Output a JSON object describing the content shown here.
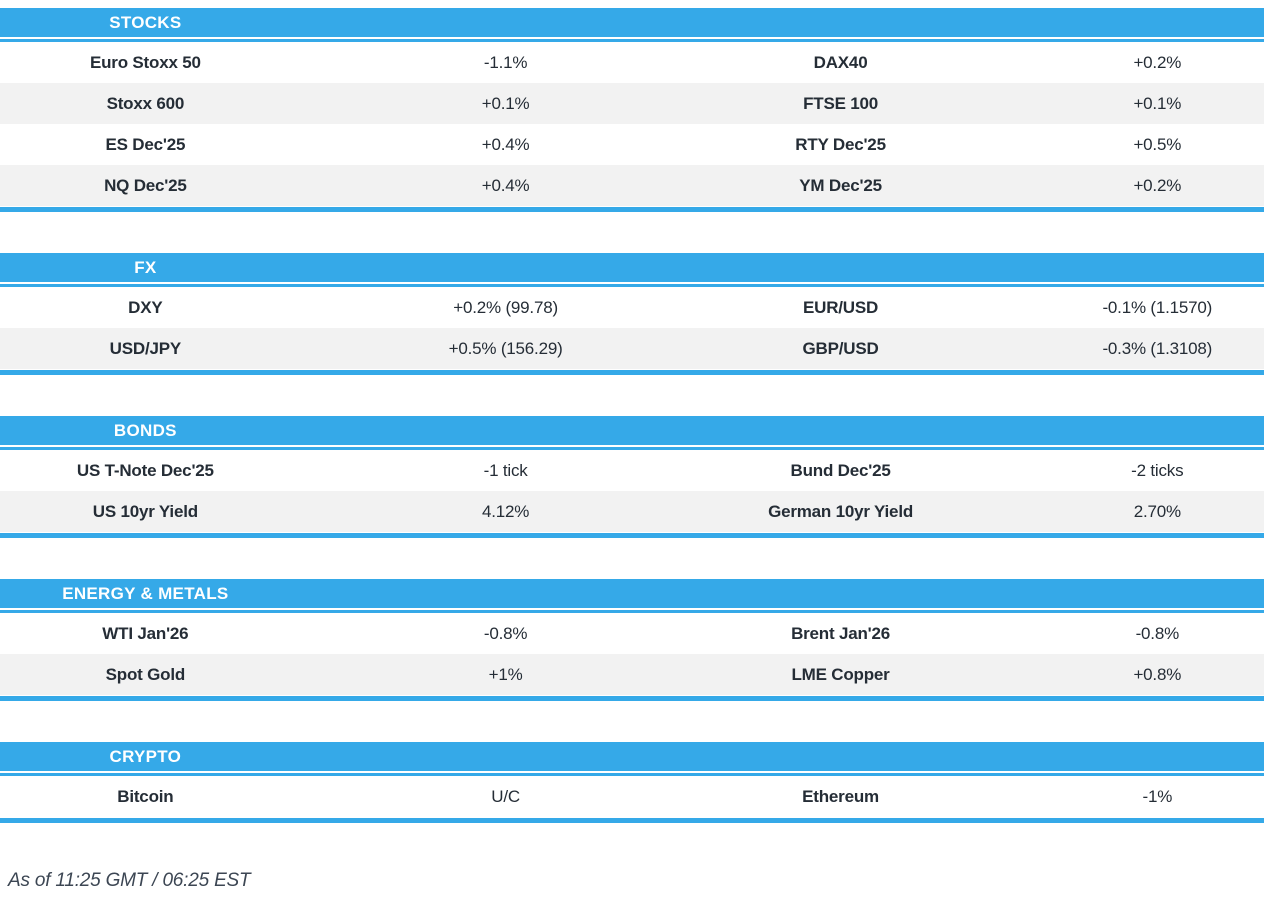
{
  "colors": {
    "header_blue": "#35a9e8",
    "row_alt_gray": "#f2f2f2",
    "text_dark": "#252d36",
    "footer_text": "#3c4653"
  },
  "sections": [
    {
      "title": "STOCKS",
      "rows": [
        {
          "left_name": "Euro Stoxx 50",
          "left_value": "-1.1%",
          "right_name": "DAX40",
          "right_value": "+0.2%"
        },
        {
          "left_name": "Stoxx 600",
          "left_value": "+0.1%",
          "right_name": "FTSE 100",
          "right_value": "+0.1%"
        },
        {
          "left_name": "ES Dec'25",
          "left_value": "+0.4%",
          "right_name": "RTY Dec'25",
          "right_value": "+0.5%"
        },
        {
          "left_name": "NQ Dec'25",
          "left_value": "+0.4%",
          "right_name": "YM Dec'25",
          "right_value": "+0.2%"
        }
      ]
    },
    {
      "title": "FX",
      "rows": [
        {
          "left_name": "DXY",
          "left_value": "+0.2% (99.78)",
          "right_name": "EUR/USD",
          "right_value": "-0.1% (1.1570)"
        },
        {
          "left_name": "USD/JPY",
          "left_value": "+0.5% (156.29)",
          "right_name": "GBP/USD",
          "right_value": "-0.3% (1.3108)"
        }
      ]
    },
    {
      "title": "BONDS",
      "rows": [
        {
          "left_name": "US T-Note Dec'25",
          "left_value": "-1 tick",
          "right_name": "Bund Dec'25",
          "right_value": "-2 ticks"
        },
        {
          "left_name": "US 10yr Yield",
          "left_value": "4.12%",
          "right_name": "German 10yr Yield",
          "right_value": "2.70%"
        }
      ]
    },
    {
      "title": "ENERGY & METALS",
      "rows": [
        {
          "left_name": "WTI Jan'26",
          "left_value": "-0.8%",
          "right_name": "Brent Jan'26",
          "right_value": "-0.8%"
        },
        {
          "left_name": "Spot Gold",
          "left_value": "+1%",
          "right_name": "LME Copper",
          "right_value": "+0.8%"
        }
      ]
    },
    {
      "title": "CRYPTO",
      "rows": [
        {
          "left_name": "Bitcoin",
          "left_value": "U/C",
          "right_name": "Ethereum",
          "right_value": "-1%"
        }
      ]
    }
  ],
  "footer": {
    "as_of": "As of 11:25 GMT / 06:25 EST"
  }
}
